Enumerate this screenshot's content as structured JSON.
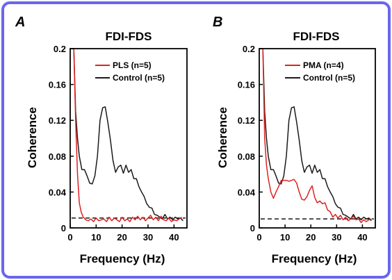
{
  "frame_color": "#6a66ee",
  "chart_data": [
    {
      "panel_letter": "A",
      "type": "line",
      "title": "FDI-FDS",
      "xlabel": "Frequency (Hz)",
      "ylabel": "Coherence",
      "xlim": [
        0,
        45
      ],
      "ylim": [
        0,
        0.2
      ],
      "xticks": [
        "0",
        "10",
        "20",
        "30",
        "40"
      ],
      "yticks": [
        "0",
        "0.04",
        "0.08",
        "0.12",
        "0.16",
        "0.2"
      ],
      "legend_position": "top-right",
      "grid": false,
      "reference_line": {
        "y": 0.011,
        "style": "dashed",
        "color": "#000000"
      },
      "series": [
        {
          "name": "PLS (n=5)",
          "color": "#e02020",
          "x": [
            0.7,
            1.4,
            2.1,
            2.8,
            3.5,
            4.2,
            5.0,
            6.0,
            7.0,
            8.0,
            9.0,
            10.0,
            11.0,
            12.0,
            13.0,
            14.0,
            15.0,
            16.0,
            17.0,
            18.0,
            19.0,
            20.0,
            21.0,
            22.0,
            23.0,
            24.0,
            25.0,
            26.0,
            27.0,
            28.0,
            29.0,
            30.0,
            31.0,
            32.0,
            33.0,
            34.0,
            35.0,
            36.0,
            37.0,
            38.0,
            39.0,
            40.0,
            41.0,
            42.0,
            43.0
          ],
          "values": [
            0.2,
            0.2,
            0.12,
            0.06,
            0.028,
            0.018,
            0.012,
            0.009,
            0.008,
            0.01,
            0.007,
            0.011,
            0.008,
            0.009,
            0.01,
            0.007,
            0.012,
            0.008,
            0.011,
            0.009,
            0.007,
            0.012,
            0.008,
            0.01,
            0.007,
            0.012,
            0.009,
            0.013,
            0.009,
            0.012,
            0.008,
            0.011,
            0.014,
            0.009,
            0.012,
            0.008,
            0.013,
            0.009,
            0.008,
            0.011,
            0.007,
            0.009,
            0.008,
            0.01,
            0.012
          ]
        },
        {
          "name": "Control (n=5)",
          "color": "#1a1a1a",
          "x": [
            0.7,
            1.4,
            2.1,
            2.8,
            3.5,
            4.5,
            5.5,
            6.5,
            7.5,
            8.5,
            9.5,
            10.5,
            11.5,
            12.5,
            13.5,
            14.5,
            15.5,
            16.5,
            17.5,
            18.5,
            19.5,
            20.5,
            21.5,
            22.5,
            23.5,
            24.5,
            25.5,
            26.5,
            27.5,
            28.5,
            29.5,
            30.5,
            31.5,
            32.5,
            33.5,
            34.5,
            35.5,
            36.5,
            37.5,
            38.5,
            39.5,
            40.5,
            41.5,
            42.5,
            43.5
          ],
          "values": [
            0.2,
            0.2,
            0.13,
            0.1,
            0.08,
            0.065,
            0.065,
            0.058,
            0.05,
            0.049,
            0.058,
            0.08,
            0.12,
            0.134,
            0.135,
            0.118,
            0.098,
            0.075,
            0.062,
            0.068,
            0.07,
            0.061,
            0.07,
            0.062,
            0.065,
            0.055,
            0.055,
            0.046,
            0.04,
            0.035,
            0.027,
            0.023,
            0.022,
            0.015,
            0.014,
            0.012,
            0.01,
            0.015,
            0.01,
            0.012,
            0.009,
            0.012,
            0.01,
            0.011,
            0.008
          ]
        }
      ]
    },
    {
      "panel_letter": "B",
      "type": "line",
      "title": "FDI-FDS",
      "xlabel": "Frequency (Hz)",
      "ylabel": "Coherence",
      "xlim": [
        0,
        45
      ],
      "ylim": [
        0,
        0.2
      ],
      "xticks": [
        "0",
        "10",
        "20",
        "30",
        "40"
      ],
      "yticks": [
        "0",
        "0.04",
        "0.08",
        "0.12",
        "0.16",
        "0.2"
      ],
      "legend_position": "top-right",
      "grid": false,
      "reference_line": {
        "y": 0.01,
        "style": "dashed",
        "color": "#000000"
      },
      "series": [
        {
          "name": "PMA (n=4)",
          "color": "#e02020",
          "x": [
            0.7,
            1.4,
            2.1,
            2.8,
            3.5,
            4.5,
            5.5,
            6.5,
            7.5,
            8.5,
            9.5,
            10.5,
            11.5,
            12.5,
            13.5,
            14.5,
            15.5,
            16.5,
            17.5,
            18.5,
            19.5,
            20.5,
            21.5,
            22.5,
            23.5,
            24.5,
            25.5,
            26.5,
            27.5,
            28.5,
            29.5,
            30.5,
            31.5,
            32.5,
            33.5,
            34.5,
            35.5,
            36.5,
            37.5,
            38.5,
            39.5,
            40.5,
            41.5,
            42.5,
            43.5
          ],
          "values": [
            0.2,
            0.2,
            0.1,
            0.07,
            0.055,
            0.04,
            0.033,
            0.04,
            0.046,
            0.053,
            0.053,
            0.053,
            0.052,
            0.053,
            0.054,
            0.05,
            0.04,
            0.032,
            0.031,
            0.035,
            0.042,
            0.047,
            0.034,
            0.028,
            0.03,
            0.027,
            0.028,
            0.02,
            0.018,
            0.012,
            0.015,
            0.011,
            0.014,
            0.009,
            0.012,
            0.008,
            0.01,
            0.013,
            0.009,
            0.01,
            0.006,
            0.009,
            0.007,
            0.009,
            0.01
          ]
        },
        {
          "name": "Control (n=5)",
          "color": "#1a1a1a",
          "x": [
            0.7,
            1.4,
            2.1,
            2.8,
            3.5,
            4.5,
            5.5,
            6.5,
            7.5,
            8.5,
            9.5,
            10.5,
            11.5,
            12.5,
            13.5,
            14.5,
            15.5,
            16.5,
            17.5,
            18.5,
            19.5,
            20.5,
            21.5,
            22.5,
            23.5,
            24.5,
            25.5,
            26.5,
            27.5,
            28.5,
            29.5,
            30.5,
            31.5,
            32.5,
            33.5,
            34.5,
            35.5,
            36.5,
            37.5,
            38.5,
            39.5,
            40.5,
            41.5,
            42.5,
            43.5
          ],
          "values": [
            0.2,
            0.2,
            0.13,
            0.1,
            0.08,
            0.065,
            0.065,
            0.058,
            0.05,
            0.049,
            0.058,
            0.08,
            0.12,
            0.134,
            0.135,
            0.118,
            0.098,
            0.075,
            0.062,
            0.068,
            0.07,
            0.061,
            0.07,
            0.062,
            0.065,
            0.055,
            0.055,
            0.046,
            0.04,
            0.035,
            0.027,
            0.023,
            0.022,
            0.015,
            0.014,
            0.012,
            0.01,
            0.015,
            0.01,
            0.012,
            0.009,
            0.012,
            0.01,
            0.011,
            0.008
          ]
        }
      ]
    }
  ]
}
